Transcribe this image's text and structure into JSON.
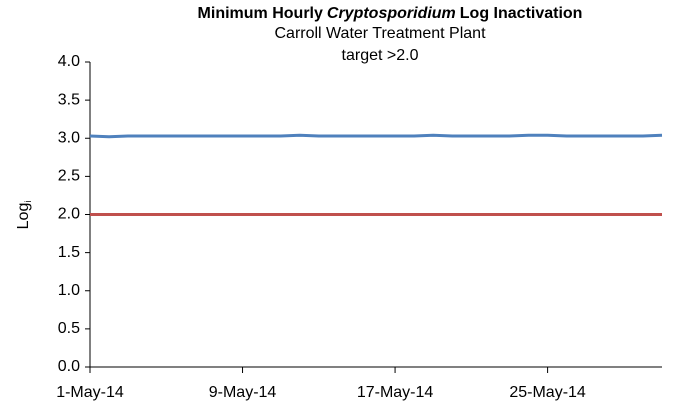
{
  "chart_data": {
    "type": "line",
    "title": [
      "Minimum Hourly",
      "Cryptosporidium",
      "Log Inactivation"
    ],
    "subtitle": "Carroll Water Treatment Plant",
    "annotation": "target >2.0",
    "y_label": [
      "Log",
      "i"
    ],
    "x": [
      "2014-05-01",
      "2014-05-02",
      "2014-05-03",
      "2014-05-04",
      "2014-05-05",
      "2014-05-06",
      "2014-05-07",
      "2014-05-08",
      "2014-05-09",
      "2014-05-10",
      "2014-05-11",
      "2014-05-12",
      "2014-05-13",
      "2014-05-14",
      "2014-05-15",
      "2014-05-16",
      "2014-05-17",
      "2014-05-18",
      "2014-05-19",
      "2014-05-20",
      "2014-05-21",
      "2014-05-22",
      "2014-05-23",
      "2014-05-24",
      "2014-05-25",
      "2014-05-26",
      "2014-05-27",
      "2014-05-28",
      "2014-05-29",
      "2014-05-30",
      "2014-05-31"
    ],
    "series": [
      {
        "color": "#4f81bd",
        "values": [
          3.03,
          3.02,
          3.03,
          3.03,
          3.03,
          3.03,
          3.03,
          3.03,
          3.03,
          3.03,
          3.03,
          3.04,
          3.03,
          3.03,
          3.03,
          3.03,
          3.03,
          3.03,
          3.04,
          3.03,
          3.03,
          3.03,
          3.03,
          3.04,
          3.04,
          3.03,
          3.03,
          3.03,
          3.03,
          3.03,
          3.04
        ]
      },
      {
        "color": "#c0504d",
        "values": [
          2.0,
          2.0,
          2.0,
          2.0,
          2.0,
          2.0,
          2.0,
          2.0,
          2.0,
          2.0,
          2.0,
          2.0,
          2.0,
          2.0,
          2.0,
          2.0,
          2.0,
          2.0,
          2.0,
          2.0,
          2.0,
          2.0,
          2.0,
          2.0,
          2.0,
          2.0,
          2.0,
          2.0,
          2.0,
          2.0,
          2.0
        ]
      }
    ],
    "xlim": [
      "2014-05-01",
      "2014-05-31"
    ],
    "xticks": [
      {
        "value": "2014-05-01",
        "label": "1-May-14"
      },
      {
        "value": "2014-05-09",
        "label": "9-May-14"
      },
      {
        "value": "2014-05-17",
        "label": "17-May-14"
      },
      {
        "value": "2014-05-25",
        "label": "25-May-14"
      }
    ],
    "ylim": [
      0,
      4
    ],
    "yticks": [
      {
        "value": 0,
        "label": "0.0"
      },
      {
        "value": 0.5,
        "label": "0.5"
      },
      {
        "value": 1,
        "label": "1.0"
      },
      {
        "value": 1.5,
        "label": "1.5"
      },
      {
        "value": 2,
        "label": "2.0"
      },
      {
        "value": 2.5,
        "label": "2.5"
      },
      {
        "value": 3,
        "label": "3.0"
      },
      {
        "value": 3.5,
        "label": "3.5"
      },
      {
        "value": 4,
        "label": "4.0"
      }
    ],
    "grid": false
  }
}
